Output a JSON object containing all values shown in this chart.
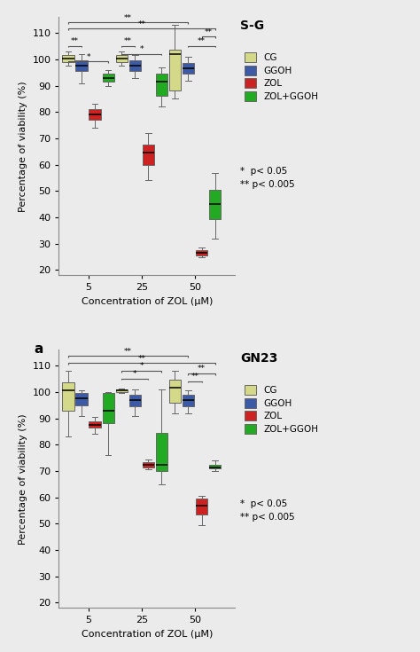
{
  "panel1_title": "S-G",
  "panel2_title": "GN23",
  "ylabel": "Percentage of viability (%)",
  "xlabel": "Concentration of ZOL (μM)",
  "xtick_labels": [
    "5",
    "25",
    "50"
  ],
  "ylim": [
    18,
    116
  ],
  "yticks": [
    20,
    30,
    40,
    50,
    60,
    70,
    80,
    90,
    100,
    110
  ],
  "bg_color": "#ebebeb",
  "colors": {
    "CG": "#d4d98a",
    "GGOH": "#3c5aa6",
    "ZOL": "#cc2222",
    "ZOLGGOH": "#22aa22"
  },
  "legend_labels": [
    "CG",
    "GGOH",
    "ZOL",
    "ZOL+GGOH"
  ],
  "significance_note1": "*  p< 0.05",
  "significance_note2": "** p< 0.005",
  "panel1": {
    "CG": {
      "0": {
        "whislo": 97.5,
        "q1": 99.0,
        "med": 100.2,
        "q3": 101.5,
        "whishi": 103.0
      },
      "1": {
        "whislo": 97.5,
        "q1": 99.0,
        "med": 100.2,
        "q3": 101.5,
        "whishi": 103.0
      },
      "2": {
        "whislo": 85.0,
        "q1": 88.0,
        "med": 102.0,
        "q3": 103.5,
        "whishi": 113.0
      }
    },
    "GGOH": {
      "0": {
        "whislo": 91.0,
        "q1": 95.5,
        "med": 97.5,
        "q3": 99.5,
        "whishi": 102.0
      },
      "1": {
        "whislo": 93.0,
        "q1": 95.5,
        "med": 97.5,
        "q3": 99.5,
        "whishi": 101.5
      },
      "2": {
        "whislo": 92.0,
        "q1": 94.5,
        "med": 96.5,
        "q3": 98.5,
        "whishi": 101.0
      }
    },
    "ZOL": {
      "0": {
        "whislo": 74.0,
        "q1": 77.0,
        "med": 79.0,
        "q3": 81.0,
        "whishi": 83.0
      },
      "1": {
        "whislo": 54.0,
        "q1": 60.0,
        "med": 64.5,
        "q3": 67.5,
        "whishi": 72.0
      },
      "2": {
        "whislo": 25.0,
        "q1": 25.5,
        "med": 26.5,
        "q3": 27.5,
        "whishi": 28.5
      }
    },
    "ZOLGGOH": {
      "0": {
        "whislo": 90.0,
        "q1": 91.5,
        "med": 93.0,
        "q3": 94.5,
        "whishi": 96.0
      },
      "1": {
        "whislo": 82.0,
        "q1": 86.0,
        "med": 91.5,
        "q3": 94.5,
        "whishi": 97.0
      },
      "2": {
        "whislo": 32.0,
        "q1": 39.5,
        "med": 45.0,
        "q3": 50.5,
        "whishi": 57.0
      }
    }
  },
  "panel2": {
    "CG": {
      "0": {
        "whislo": 83.0,
        "q1": 93.0,
        "med": 100.5,
        "q3": 103.5,
        "whishi": 108.0
      },
      "1": {
        "whislo": 99.5,
        "q1": 100.0,
        "med": 100.5,
        "q3": 100.8,
        "whishi": 101.2
      },
      "2": {
        "whislo": 92.0,
        "q1": 96.0,
        "med": 101.5,
        "q3": 104.5,
        "whishi": 108.0
      }
    },
    "GGOH": {
      "0": {
        "whislo": 91.0,
        "q1": 95.0,
        "med": 97.5,
        "q3": 99.5,
        "whishi": 100.5
      },
      "1": {
        "whislo": 91.0,
        "q1": 94.5,
        "med": 97.0,
        "q3": 99.0,
        "whishi": 101.0
      },
      "2": {
        "whislo": 92.0,
        "q1": 94.5,
        "med": 97.0,
        "q3": 99.0,
        "whishi": 100.5
      }
    },
    "ZOL": {
      "0": {
        "whislo": 84.0,
        "q1": 86.5,
        "med": 87.5,
        "q3": 89.0,
        "whishi": 90.5
      },
      "1": {
        "whislo": 70.5,
        "q1": 71.5,
        "med": 72.5,
        "q3": 73.5,
        "whishi": 74.5
      },
      "2": {
        "whislo": 49.5,
        "q1": 53.5,
        "med": 57.0,
        "q3": 59.5,
        "whishi": 60.5
      }
    },
    "ZOLGGOH": {
      "0": {
        "whislo": 76.0,
        "q1": 88.0,
        "med": 93.0,
        "q3": 99.5,
        "whishi": 100.0
      },
      "1": {
        "whislo": 65.0,
        "q1": 70.0,
        "med": 72.5,
        "q3": 84.5,
        "whishi": 101.0
      },
      "2": {
        "whislo": 70.0,
        "q1": 71.0,
        "med": 71.5,
        "q3": 72.5,
        "whishi": 74.0
      }
    }
  },
  "group_centers": [
    0,
    1,
    2
  ],
  "series_offsets": [
    -0.375,
    -0.125,
    0.125,
    0.375
  ],
  "box_width": 0.22,
  "panel1_local_sig": [
    {
      "gi": 0,
      "s1": 0,
      "s2": 1,
      "y": 104.5,
      "text": "**"
    },
    {
      "gi": 0,
      "s1": 0,
      "s2": 3,
      "y": 98.5,
      "text": "*"
    },
    {
      "gi": 1,
      "s1": 0,
      "s2": 1,
      "y": 104.5,
      "text": "**"
    },
    {
      "gi": 1,
      "s1": 0,
      "s2": 3,
      "y": 101.5,
      "text": "*"
    },
    {
      "gi": 2,
      "s1": 1,
      "s2": 3,
      "y": 104.5,
      "text": "**"
    },
    {
      "gi": 2,
      "s1": 2,
      "s2": 3,
      "y": 108.0,
      "text": "**"
    }
  ],
  "panel1_cross_sig": [
    {
      "g1": 0,
      "s1": 0,
      "g2": 2,
      "s2": 1,
      "y": 113.5,
      "text": "**"
    },
    {
      "g1": 0,
      "s1": 0,
      "g2": 2,
      "s2": 3,
      "y": 111.0,
      "text": "**"
    }
  ],
  "panel2_local_sig": [
    {
      "gi": 1,
      "s1": 0,
      "s2": 2,
      "y": 104.5,
      "text": "*"
    },
    {
      "gi": 1,
      "s1": 0,
      "s2": 3,
      "y": 107.5,
      "text": "*"
    },
    {
      "gi": 2,
      "s1": 1,
      "s2": 2,
      "y": 103.5,
      "text": "**"
    },
    {
      "gi": 2,
      "s1": 1,
      "s2": 3,
      "y": 106.5,
      "text": "**"
    }
  ],
  "panel2_cross_sig": [
    {
      "g1": 0,
      "s1": 0,
      "g2": 2,
      "s2": 1,
      "y": 113.0,
      "text": "**"
    },
    {
      "g1": 0,
      "s1": 0,
      "g2": 2,
      "s2": 3,
      "y": 110.5,
      "text": "**"
    }
  ]
}
